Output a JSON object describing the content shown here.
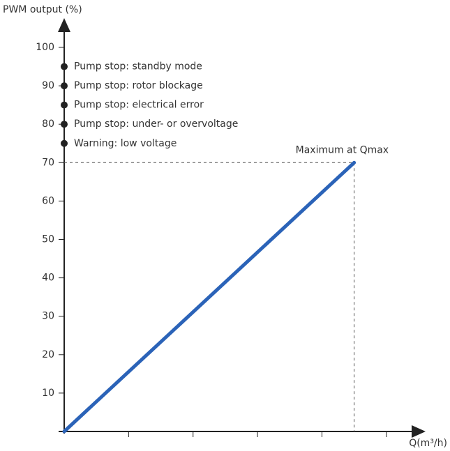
{
  "chart_data": {
    "type": "line",
    "y_label": "PWM output (%)",
    "x_label": "Q(m³/h)",
    "x": [
      0,
      4.5
    ],
    "series": [
      {
        "name": "PWM output",
        "color": "#2b63b8",
        "values": [
          0,
          70
        ]
      }
    ],
    "xlim": [
      0,
      5.5
    ],
    "xticks": [
      1,
      2,
      3,
      4,
      5
    ],
    "ylim": [
      0,
      100
    ],
    "yticks": [
      10,
      20,
      30,
      40,
      50,
      60,
      70,
      80,
      90,
      100
    ],
    "markers": [
      {
        "value": 95,
        "label": "Pump stop: standby mode"
      },
      {
        "value": 90,
        "label": "Pump stop: rotor blockage"
      },
      {
        "value": 85,
        "label": "Pump stop: electrical error"
      },
      {
        "value": 80,
        "label": "Pump stop: under- or overvoltage"
      },
      {
        "value": 75,
        "label": "Warning: low voltage"
      }
    ],
    "marker_color": "#222222",
    "annotation": "Maximum at Qmax"
  }
}
